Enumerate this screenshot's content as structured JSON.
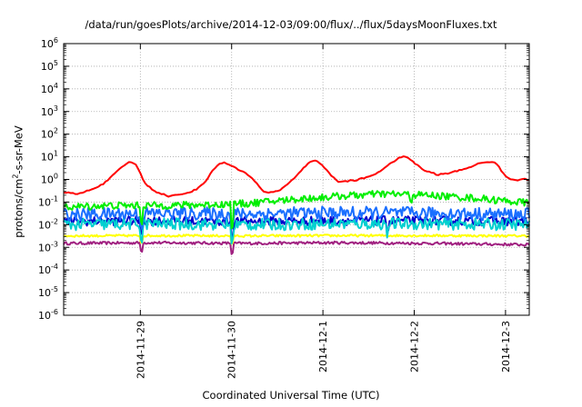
{
  "chart_data": {
    "type": "line",
    "title": "/data/run/goesPlots/archive/2014-12-03/09:00/flux/../flux/5daysMoonFluxes.txt",
    "xlabel": "Coordinated Universal Time (UTC)",
    "ylabel": "protons/cm²-s-sr-MeV",
    "ylabel_parts": {
      "before": "protons/cm",
      "sup": "2",
      "after": "-s-sr-MeV"
    },
    "xlim": [
      0,
      5.1
    ],
    "ylim": [
      1e-06,
      1000000.0
    ],
    "yscale": "log",
    "grid": true,
    "x_ticks": [
      {
        "x": 0.84,
        "label": "2014-11-29"
      },
      {
        "x": 1.84,
        "label": "2014-11-30"
      },
      {
        "x": 2.84,
        "label": "2014-12-1"
      },
      {
        "x": 3.84,
        "label": "2014-12-2"
      },
      {
        "x": 4.84,
        "label": "2014-12-3"
      }
    ],
    "y_ticks": [
      {
        "exp": 6,
        "label": "10",
        "sup": "6"
      },
      {
        "exp": 5,
        "label": "10",
        "sup": "5"
      },
      {
        "exp": 4,
        "label": "10",
        "sup": "4"
      },
      {
        "exp": 3,
        "label": "10",
        "sup": "3"
      },
      {
        "exp": 2,
        "label": "10",
        "sup": "2"
      },
      {
        "exp": 1,
        "label": "10",
        "sup": "1"
      },
      {
        "exp": 0,
        "label": "10",
        "sup": "0"
      },
      {
        "exp": -1,
        "label": "10",
        "sup": "-1"
      },
      {
        "exp": -2,
        "label": "10",
        "sup": "-2"
      },
      {
        "exp": -3,
        "label": "10",
        "sup": "-3"
      },
      {
        "exp": -4,
        "label": "10",
        "sup": "-4"
      },
      {
        "exp": -5,
        "label": "10",
        "sup": "-5"
      },
      {
        "exp": -6,
        "label": "10",
        "sup": "-6"
      }
    ],
    "series": [
      {
        "color": "#ff0000",
        "x": [
          0,
          0.15,
          0.3,
          0.45,
          0.6,
          0.7,
          0.75,
          0.8,
          0.85,
          0.9,
          1.0,
          1.15,
          1.3,
          1.45,
          1.55,
          1.65,
          1.7,
          1.75,
          1.82,
          1.9,
          2.0,
          2.1,
          2.2,
          2.35,
          2.5,
          2.62,
          2.7,
          2.76,
          2.82,
          2.9,
          3.0,
          3.2,
          3.4,
          3.55,
          3.65,
          3.72,
          3.78,
          3.85,
          3.95,
          4.1,
          4.25,
          4.4,
          4.55,
          4.65,
          4.72,
          4.78,
          4.85,
          4.95,
          5.05,
          5.1
        ],
        "y": [
          0.28,
          0.22,
          0.35,
          0.7,
          2.5,
          5.5,
          6,
          4,
          1.5,
          0.6,
          0.3,
          0.18,
          0.22,
          0.35,
          0.8,
          3,
          5,
          5.5,
          4.5,
          3,
          1.8,
          0.8,
          0.25,
          0.3,
          0.9,
          3,
          6,
          7,
          5,
          2,
          0.8,
          0.9,
          1.6,
          4,
          8,
          10,
          9,
          5,
          2.5,
          1.6,
          2,
          3,
          5,
          6,
          6,
          3,
          1.2,
          0.9,
          1.1,
          1.0
        ]
      },
      {
        "color": "#00ee00",
        "x": [
          0,
          0.5,
          1.0,
          1.5,
          2.0,
          2.5,
          3.0,
          3.5,
          4.0,
          4.5,
          5.1
        ],
        "y": [
          0.06,
          0.07,
          0.07,
          0.075,
          0.085,
          0.13,
          0.18,
          0.23,
          0.2,
          0.15,
          0.09
        ],
        "noise": 0.16,
        "dips": [
          [
            0.85,
            0.2
          ],
          [
            1.85,
            0.12
          ],
          [
            3.8,
            0.6
          ]
        ]
      },
      {
        "color": "#1a6fff",
        "x": [
          0,
          1.0,
          2.0,
          3.0,
          4.0,
          5.1
        ],
        "y": [
          0.028,
          0.032,
          0.03,
          0.034,
          0.032,
          0.028
        ],
        "noise": 0.28,
        "dips": [
          [
            0.85,
            0.25
          ],
          [
            1.85,
            0.2
          ],
          [
            3.2,
            0.5
          ]
        ]
      },
      {
        "color": "#00d0d0",
        "x": [
          0,
          1.0,
          2.0,
          3.0,
          4.0,
          5.1
        ],
        "y": [
          0.01,
          0.011,
          0.01,
          0.011,
          0.011,
          0.01
        ],
        "noise": 0.26,
        "dips": [
          [
            0.85,
            0.2
          ],
          [
            1.85,
            0.15
          ],
          [
            3.55,
            0.4
          ]
        ]
      },
      {
        "color": "#0000cc",
        "x": [
          0,
          1.0,
          2.0,
          3.0,
          4.0,
          5.1
        ],
        "y": [
          0.014,
          0.015,
          0.014,
          0.015,
          0.015,
          0.014
        ],
        "noise": 0.2,
        "dips": [
          [
            0.85,
            0.3
          ],
          [
            1.85,
            0.2
          ],
          [
            3.55,
            0.5
          ]
        ]
      },
      {
        "color": "#ffff00",
        "x": [
          0,
          1.0,
          2.0,
          3.0,
          4.0,
          5.1
        ],
        "y": [
          0.0032,
          0.0033,
          0.0032,
          0.0033,
          0.0033,
          0.0032
        ],
        "noise": 0.05,
        "dips": [
          [
            0.85,
            0.5
          ],
          [
            1.85,
            0.45
          ]
        ]
      },
      {
        "color": "#a02080",
        "x": [
          0,
          1.0,
          2.0,
          3.0,
          4.0,
          5.1
        ],
        "y": [
          0.0015,
          0.0016,
          0.0015,
          0.0016,
          0.0015,
          0.0013
        ],
        "noise": 0.06,
        "dips": [
          [
            0.85,
            0.45
          ],
          [
            1.85,
            0.35
          ]
        ]
      }
    ]
  }
}
